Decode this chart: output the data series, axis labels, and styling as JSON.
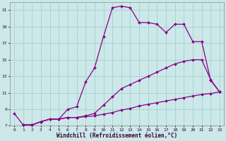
{
  "xlabel": "Windchill (Refroidissement éolien,°C)",
  "bg_color": "#cce8e8",
  "grid_color": "#aad4d4",
  "line_color": "#880088",
  "xlim": [
    -0.5,
    23.5
  ],
  "ylim": [
    7,
    22
  ],
  "xticks": [
    0,
    1,
    2,
    3,
    4,
    5,
    6,
    7,
    8,
    9,
    10,
    11,
    12,
    13,
    14,
    15,
    16,
    17,
    18,
    19,
    20,
    21,
    22,
    23
  ],
  "yticks": [
    7,
    9,
    11,
    13,
    15,
    17,
    19,
    21
  ],
  "line1_x": [
    0,
    1,
    2,
    3,
    4,
    5,
    6,
    7,
    8,
    9,
    10,
    11,
    12,
    13,
    14,
    15,
    16,
    17,
    18,
    19,
    20,
    21,
    22,
    23
  ],
  "line1_y": [
    8.5,
    7.1,
    7.1,
    7.5,
    7.8,
    7.8,
    9.0,
    9.3,
    12.3,
    14.0,
    17.8,
    21.3,
    21.5,
    21.3,
    19.5,
    19.5,
    19.3,
    18.3,
    19.3,
    19.3,
    17.2,
    17.2,
    12.5,
    11.1
  ],
  "line2_x": [
    1,
    2,
    3,
    4,
    5,
    6,
    7,
    8,
    9,
    10,
    11,
    12,
    13,
    14,
    15,
    16,
    17,
    18,
    19,
    20,
    21,
    22,
    23
  ],
  "line2_y": [
    7.1,
    7.1,
    7.5,
    7.8,
    7.8,
    8.0,
    8.0,
    8.2,
    8.5,
    9.5,
    10.5,
    11.5,
    12.0,
    12.5,
    13.0,
    13.5,
    14.0,
    14.5,
    14.8,
    15.0,
    15.0,
    12.6,
    11.1
  ],
  "line3_x": [
    1,
    2,
    3,
    4,
    5,
    6,
    7,
    8,
    9,
    10,
    11,
    12,
    13,
    14,
    15,
    16,
    17,
    18,
    19,
    20,
    21,
    22,
    23
  ],
  "line3_y": [
    7.1,
    7.1,
    7.5,
    7.8,
    7.8,
    8.0,
    8.0,
    8.1,
    8.2,
    8.4,
    8.6,
    8.9,
    9.1,
    9.4,
    9.6,
    9.8,
    10.0,
    10.2,
    10.4,
    10.6,
    10.8,
    10.9,
    11.1
  ]
}
